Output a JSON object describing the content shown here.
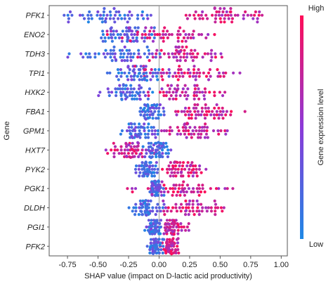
{
  "chart_data": {
    "type": "scatter",
    "subtype": "beeswarm",
    "xlabel": "SHAP value (impact on D-lactic acid productivity)",
    "ylabel": "Gene",
    "xlim": [
      -0.9,
      1.05
    ],
    "xticks": [
      "-0.75",
      "-0.50",
      "-0.25",
      "0.00",
      "0.25",
      "0.50",
      "0.75",
      "1.00"
    ],
    "xtick_values": [
      -0.75,
      -0.5,
      -0.25,
      0.0,
      0.25,
      0.5,
      0.75,
      1.0
    ],
    "grid": false,
    "zero_line": true,
    "colors": {
      "low": "#1e88e5",
      "mid": "#8c3ad8",
      "high": "#ff0d57"
    },
    "colorbar": {
      "title": "Gene expression level",
      "high_label": "High",
      "low_label": "Low",
      "position": "right"
    },
    "genes": [
      {
        "name": "PFK1",
        "low_range": [
          -0.85,
          0.0
        ],
        "high_range": [
          0.05,
          0.98
        ]
      },
      {
        "name": "ENO2",
        "low_range": [
          -0.5,
          0.0
        ],
        "high_range": [
          -0.45,
          0.55
        ]
      },
      {
        "name": "TDH3",
        "low_range": [
          -0.75,
          0.05
        ],
        "high_range": [
          -0.2,
          0.6
        ]
      },
      {
        "name": "TPI1",
        "low_range": [
          -0.45,
          0.1
        ],
        "high_range": [
          -0.2,
          0.7
        ]
      },
      {
        "name": "HXK2",
        "low_range": [
          -0.55,
          0.0
        ],
        "high_range": [
          -0.15,
          0.55
        ]
      },
      {
        "name": "FBA1",
        "low_range": [
          -0.2,
          0.05
        ],
        "high_range": [
          0.05,
          0.72
        ]
      },
      {
        "name": "GPM1",
        "low_range": [
          -0.35,
          0.0
        ],
        "high_range": [
          -0.05,
          0.6
        ]
      },
      {
        "name": "HXT7",
        "low_range": [
          -0.15,
          0.1
        ],
        "high_range": [
          -0.45,
          0.0
        ]
      },
      {
        "name": "PYK2",
        "low_range": [
          -0.2,
          0.0
        ],
        "high_range": [
          0.0,
          0.4
        ]
      },
      {
        "name": "PGK1",
        "low_range": [
          -0.1,
          0.05
        ],
        "high_range": [
          -0.3,
          0.65
        ]
      },
      {
        "name": "DLDH",
        "low_range": [
          -0.25,
          0.05
        ],
        "high_range": [
          0.0,
          0.57
        ]
      },
      {
        "name": "PGI1",
        "low_range": [
          -0.12,
          0.05
        ],
        "high_range": [
          0.0,
          0.25
        ]
      },
      {
        "name": "PFK2",
        "low_range": [
          -0.12,
          0.05
        ],
        "high_range": [
          0.0,
          0.18
        ]
      }
    ]
  }
}
